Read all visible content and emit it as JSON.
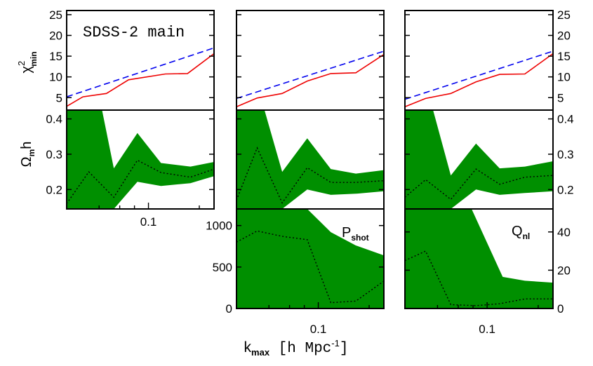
{
  "colors": {
    "chi2_series": "#ee0000",
    "reference_line": "#0000ee",
    "band_fill": "#008f00",
    "median_line": "#000000",
    "frame": "#000000"
  },
  "figure": {
    "panel_title": "SDSS-2 main",
    "xlabel": "k_max [h Mpc^-1]",
    "xlabel_main": "k",
    "xlabel_sub": "max",
    "xlabel_rest": " [h Mpc",
    "xlabel_exp": "-1",
    "xlabel_close": "]",
    "row_labels": {
      "chi2": {
        "main": "χ",
        "sup": "2",
        "sub": "min"
      },
      "omega": {
        "main": "Ω",
        "sub": "m",
        "tail": "h"
      }
    },
    "annotations": {
      "pshot": {
        "main": "P",
        "sub": "shot"
      },
      "qnl": {
        "main": "Q",
        "sub": "nl"
      }
    }
  },
  "chart_data": [
    {
      "type": "line",
      "id": "chi2-col1",
      "x_tick_labels": [],
      "y_tick_labels": [
        "5",
        "10",
        "15",
        "20",
        "25"
      ],
      "ylim": [
        2,
        26
      ],
      "series": [
        {
          "role": "chi2_min",
          "x": [
            0,
            0.11,
            0.27,
            0.42,
            0.67,
            0.82,
            1.0
          ],
          "y": [
            2.9,
            5.2,
            6.0,
            9.3,
            10.7,
            10.8,
            15.6
          ]
        },
        {
          "role": "reference",
          "x": [
            0,
            1.0
          ],
          "y": [
            5.2,
            17.0
          ]
        }
      ]
    },
    {
      "type": "line",
      "id": "chi2-col2",
      "x_tick_labels": [],
      "y_tick_labels": [],
      "ylim": [
        2,
        26
      ],
      "series": [
        {
          "role": "chi2_min",
          "x": [
            0,
            0.14,
            0.31,
            0.48,
            0.64,
            0.81,
            1.0
          ],
          "y": [
            2.8,
            4.9,
            6.0,
            9.0,
            10.8,
            11.0,
            15.4
          ]
        },
        {
          "role": "reference",
          "x": [
            0,
            1.0
          ],
          "y": [
            4.8,
            16.2
          ]
        }
      ]
    },
    {
      "type": "line",
      "id": "chi2-col3",
      "x_tick_labels": [],
      "y_tick_labels": [
        "5",
        "10",
        "15",
        "20",
        "25"
      ],
      "ylim": [
        2,
        26
      ],
      "series": [
        {
          "role": "chi2_min",
          "x": [
            0,
            0.14,
            0.31,
            0.48,
            0.64,
            0.81,
            1.0
          ],
          "y": [
            2.8,
            4.8,
            6.0,
            8.8,
            10.6,
            10.7,
            15.6
          ]
        },
        {
          "role": "reference",
          "x": [
            0,
            1.0
          ],
          "y": [
            4.6,
            16.2
          ]
        }
      ]
    },
    {
      "type": "area",
      "id": "omega-col1",
      "x_tick_labels": [
        "0.1"
      ],
      "y_tick_labels": [
        "0.2",
        "0.3",
        "0.4"
      ],
      "ylim": [
        0.145,
        0.425
      ],
      "series": [
        {
          "role": "upper",
          "x": [
            0,
            0.24,
            0.32,
            0.48,
            0.64,
            0.84,
            1.0
          ],
          "y": [
            0.425,
            0.425,
            0.26,
            0.36,
            0.275,
            0.265,
            0.278
          ]
        },
        {
          "role": "lower",
          "x": [
            0,
            0.17,
            0.32,
            0.48,
            0.64,
            0.84,
            1.0
          ],
          "y": [
            0.145,
            0.145,
            0.145,
            0.222,
            0.21,
            0.218,
            0.238
          ]
        },
        {
          "role": "median",
          "x": [
            0,
            0.15,
            0.32,
            0.48,
            0.64,
            0.84,
            1.0
          ],
          "y": [
            0.16,
            0.25,
            0.178,
            0.283,
            0.248,
            0.235,
            0.258
          ]
        }
      ]
    },
    {
      "type": "area",
      "id": "omega-col2",
      "x_tick_labels": [],
      "y_tick_labels": [],
      "ylim": [
        0.145,
        0.425
      ],
      "series": [
        {
          "role": "upper",
          "x": [
            0,
            0.19,
            0.31,
            0.48,
            0.64,
            0.81,
            1.0
          ],
          "y": [
            0.425,
            0.425,
            0.25,
            0.345,
            0.258,
            0.245,
            0.255
          ]
        },
        {
          "role": "lower",
          "x": [
            0,
            0.17,
            0.31,
            0.48,
            0.64,
            0.81,
            1.0
          ],
          "y": [
            0.145,
            0.145,
            0.145,
            0.2,
            0.185,
            0.188,
            0.195
          ]
        },
        {
          "role": "median",
          "x": [
            0,
            0.14,
            0.31,
            0.48,
            0.64,
            0.81,
            1.0
          ],
          "y": [
            0.17,
            0.318,
            0.162,
            0.262,
            0.22,
            0.22,
            0.225
          ]
        }
      ]
    },
    {
      "type": "area",
      "id": "omega-col3",
      "x_tick_labels": [],
      "y_tick_labels": [
        "0.2",
        "0.3",
        "0.4"
      ],
      "ylim": [
        0.145,
        0.425
      ],
      "series": [
        {
          "role": "upper",
          "x": [
            0,
            0.19,
            0.31,
            0.48,
            0.64,
            0.81,
            1.0
          ],
          "y": [
            0.425,
            0.425,
            0.24,
            0.33,
            0.26,
            0.265,
            0.28
          ]
        },
        {
          "role": "lower",
          "x": [
            0,
            0.17,
            0.31,
            0.48,
            0.64,
            0.81,
            1.0
          ],
          "y": [
            0.145,
            0.145,
            0.145,
            0.2,
            0.185,
            0.19,
            0.195
          ]
        },
        {
          "role": "median",
          "x": [
            0,
            0.14,
            0.31,
            0.48,
            0.64,
            0.81,
            1.0
          ],
          "y": [
            0.178,
            0.228,
            0.172,
            0.258,
            0.215,
            0.235,
            0.24
          ]
        }
      ]
    },
    {
      "type": "area",
      "id": "pshot-col2",
      "x_tick_labels": [
        "0.1"
      ],
      "y_tick_labels": [
        "0",
        "500",
        "1000"
      ],
      "ylim": [
        0,
        1200
      ],
      "series": [
        {
          "role": "upper",
          "x": [
            0,
            0.48,
            0.64,
            0.81,
            1.0
          ],
          "y": [
            1200,
            1200,
            920,
            760,
            640
          ]
        },
        {
          "role": "lower",
          "x": [
            0,
            1.0
          ],
          "y": [
            0,
            0
          ]
        },
        {
          "role": "median",
          "x": [
            0,
            0.14,
            0.31,
            0.48,
            0.64,
            0.81,
            1.0
          ],
          "y": [
            800,
            935,
            870,
            830,
            70,
            90,
            330
          ]
        }
      ]
    },
    {
      "type": "area",
      "id": "qnl-col3",
      "x_tick_labels": [
        "0.1"
      ],
      "y_tick_labels": [
        "0",
        "20",
        "40"
      ],
      "ylim": [
        0,
        52
      ],
      "series": [
        {
          "role": "upper",
          "x": [
            0,
            0.45,
            0.66,
            0.81,
            1.0
          ],
          "y": [
            52,
            52,
            16.5,
            14.5,
            13.5
          ]
        },
        {
          "role": "lower",
          "x": [
            0,
            1.0
          ],
          "y": [
            0,
            0
          ]
        },
        {
          "role": "median",
          "x": [
            0,
            0.14,
            0.31,
            0.48,
            0.64,
            0.81,
            1.0
          ],
          "y": [
            25,
            30,
            2,
            1.5,
            2.5,
            5,
            5
          ]
        }
      ]
    }
  ]
}
